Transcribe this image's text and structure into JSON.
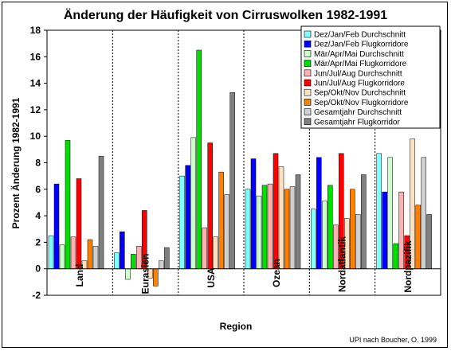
{
  "chart_data": {
    "type": "bar",
    "title": "Änderung der Häufigkeit von Cirruswolken 1982-1991",
    "xlabel": "Region",
    "ylabel": "Prozent Änderung 1982-1991",
    "ylim": [
      -2,
      18
    ],
    "yticks": [
      -2,
      0,
      2,
      4,
      6,
      8,
      10,
      12,
      14,
      16,
      18
    ],
    "grid": false,
    "legend": "top-right",
    "categories": [
      "Land",
      "Eurasien",
      "USA",
      "Ozean",
      "Nordatlantik",
      "Nordpazifik"
    ],
    "series": [
      {
        "name": "Dez/Jan/Feb Durchschnitt",
        "color": "#80ffff",
        "values": [
          2.5,
          1.2,
          7.0,
          6.0,
          4.5,
          8.7
        ]
      },
      {
        "name": "Dez/Jan/Feb Flugkorridore",
        "color": "#0000ff",
        "values": [
          6.4,
          2.8,
          7.8,
          8.3,
          8.4,
          5.8
        ]
      },
      {
        "name": "Mär/Apr/Mai Durchschnitt",
        "color": "#ccffcc",
        "values": [
          1.8,
          -0.8,
          9.9,
          5.5,
          5.1,
          8.4
        ]
      },
      {
        "name": "Mär/Apr/Mai Flugkorridore",
        "color": "#00e000",
        "values": [
          9.7,
          1.1,
          16.5,
          6.3,
          6.3,
          1.9
        ]
      },
      {
        "name": "Jun/Jul/Aug Durchschnitt",
        "color": "#ffb0b0",
        "values": [
          2.4,
          1.7,
          3.1,
          6.4,
          3.3,
          5.8
        ]
      },
      {
        "name": "Jun/Jul/Aug Flugkorridore",
        "color": "#ff0000",
        "values": [
          6.8,
          4.4,
          9.5,
          8.7,
          8.7,
          2.5
        ]
      },
      {
        "name": "Sep/Okt/Nov Durchschnitt",
        "color": "#ffe0c0",
        "values": [
          0.6,
          -0.7,
          2.4,
          7.7,
          3.8,
          9.8
        ]
      },
      {
        "name": "Sep/Okt/Nov Flugkorridore",
        "color": "#ff8000",
        "values": [
          2.2,
          -1.3,
          7.3,
          6.0,
          6.0,
          4.8
        ]
      },
      {
        "name": "Gesamtjahr Durchschnitt",
        "color": "#d0d0d0",
        "values": [
          1.7,
          0.6,
          5.6,
          6.2,
          4.1,
          8.4
        ]
      },
      {
        "name": "Gesamtjahr Flugkorridor",
        "color": "#808080",
        "values": [
          8.5,
          1.6,
          13.3,
          7.1,
          7.1,
          4.1
        ]
      }
    ],
    "annotation": "UPI nach Boucher, O. 1999"
  }
}
